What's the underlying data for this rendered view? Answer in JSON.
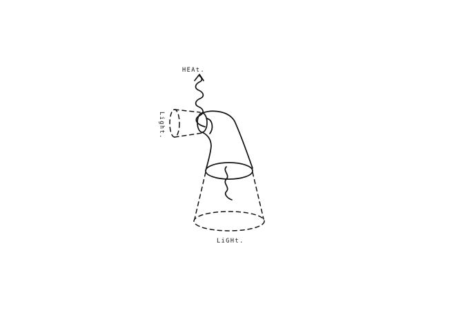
{
  "diagram": {
    "labels": {
      "heat": "HEAt.",
      "light_side": "Light.",
      "light_bottom": "LiGHt."
    },
    "ink_color": "#111111",
    "background": "#ffffff"
  }
}
